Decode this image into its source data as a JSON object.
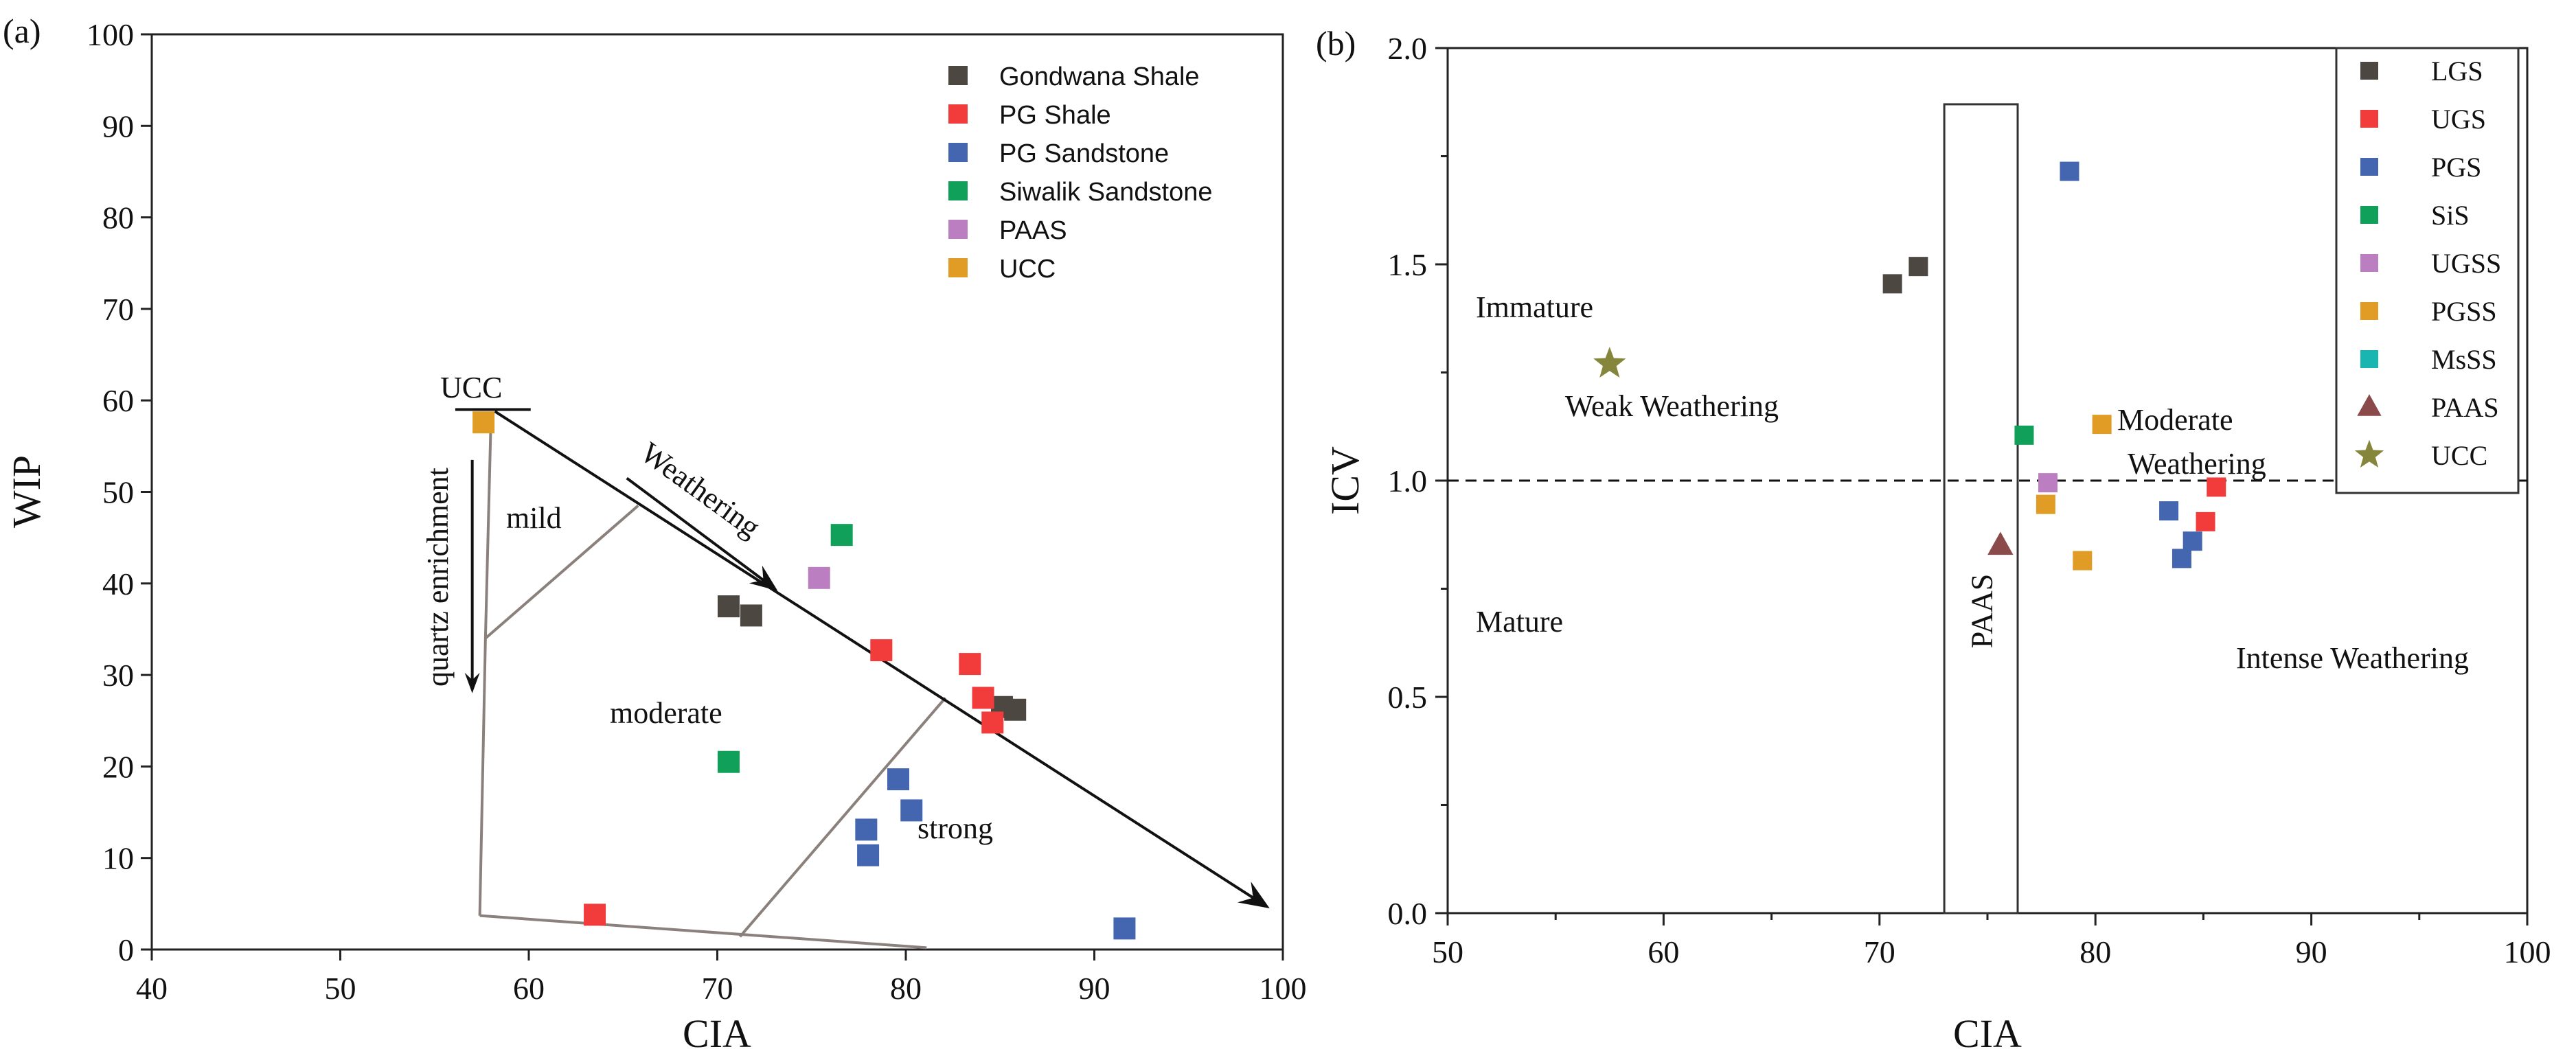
{
  "chart_data": [
    {
      "type": "scatter",
      "panel_label": "(a)",
      "xlabel": "CIA",
      "ylabel": "WIP",
      "xlim": [
        40,
        100
      ],
      "ylim": [
        0,
        100
      ],
      "xticks": [
        40,
        50,
        60,
        70,
        80,
        90,
        100
      ],
      "yticks": [
        0,
        10,
        20,
        30,
        40,
        50,
        60,
        70,
        80,
        90,
        100
      ],
      "series": [
        {
          "name": "Gondwana Shale",
          "color": "#4d4742",
          "marker": "square",
          "points": [
            [
              70.6,
              37.5
            ],
            [
              71.8,
              36.5
            ],
            [
              85.1,
              26.5
            ],
            [
              85.8,
              26.2
            ]
          ]
        },
        {
          "name": "PG Shale",
          "color": "#f23b3b",
          "marker": "square",
          "points": [
            [
              78.7,
              32.7
            ],
            [
              83.4,
              31.2
            ],
            [
              84.1,
              27.5
            ],
            [
              84.6,
              24.8
            ],
            [
              63.5,
              3.8
            ]
          ]
        },
        {
          "name": "PG Sandstone",
          "color": "#4466b0",
          "marker": "square",
          "points": [
            [
              79.6,
              18.6
            ],
            [
              80.3,
              15.2
            ],
            [
              77.9,
              13.1
            ],
            [
              78.0,
              10.3
            ],
            [
              91.6,
              2.3
            ]
          ]
        },
        {
          "name": "Siwalik Sandstone",
          "color": "#10a05a",
          "marker": "square",
          "points": [
            [
              76.6,
              45.3
            ],
            [
              70.6,
              20.5
            ]
          ]
        },
        {
          "name": "PAAS",
          "color": "#bb7ec0",
          "marker": "square",
          "points": [
            [
              75.4,
              40.6
            ]
          ]
        },
        {
          "name": "UCC",
          "color": "#e09c25",
          "marker": "square",
          "points": [
            [
              57.6,
              57.6
            ]
          ]
        }
      ],
      "annotations": {
        "ucc_label": "UCC",
        "weathering": "Weathering",
        "quartz": "quartz enrichment",
        "mild": "mild",
        "moderate": "moderate",
        "strong": "strong"
      },
      "lines": {
        "weathering_trend": [
          [
            58.2,
            58.8
          ],
          [
            99.3,
            4.5
          ]
        ],
        "ucc_tick": [
          [
            56.1,
            59.0
          ],
          [
            60.1,
            59.0
          ]
        ],
        "parallel_arrow": [
          [
            65.2,
            51.5
          ],
          [
            73.2,
            39.2
          ]
        ],
        "quartz_arrow": [
          [
            57.0,
            53.5
          ],
          [
            57.0,
            28.0
          ]
        ],
        "region_left": [
          [
            58.0,
            58.5
          ],
          [
            57.7,
            34.0
          ],
          [
            57.4,
            3.7
          ]
        ],
        "region_bottom": [
          [
            57.4,
            3.7
          ],
          [
            81.1,
            0.2
          ]
        ],
        "region_mild": [
          [
            57.7,
            34.0
          ],
          [
            65.8,
            48.5
          ]
        ],
        "region_strong": [
          [
            71.2,
            1.4
          ],
          [
            82.1,
            27.5
          ]
        ]
      }
    },
    {
      "type": "scatter",
      "panel_label": "(b)",
      "xlabel": "CIA",
      "ylabel": "ICV",
      "xlim": [
        50,
        100
      ],
      "ylim": [
        0.0,
        2.0
      ],
      "xticks": [
        50,
        60,
        70,
        80,
        90,
        100
      ],
      "yticks": [
        "0.0",
        "0.5",
        "1.0",
        "1.5",
        "2.0"
      ],
      "series": [
        {
          "name": "LGS",
          "color": "#4d4742",
          "marker": "square",
          "points": [
            [
              70.6,
              1.455
            ],
            [
              71.8,
              1.495
            ]
          ]
        },
        {
          "name": "UGS",
          "color": "#f23b3b",
          "marker": "square",
          "points": [
            [
              85.6,
              0.985
            ],
            [
              85.1,
              0.905
            ]
          ]
        },
        {
          "name": "PGS",
          "color": "#4466b0",
          "marker": "square",
          "points": [
            [
              78.8,
              1.715
            ],
            [
              83.4,
              0.93
            ],
            [
              84.5,
              0.86
            ],
            [
              84.0,
              0.82
            ]
          ]
        },
        {
          "name": "SiS",
          "color": "#10a05a",
          "marker": "square",
          "points": [
            [
              76.7,
              1.105
            ]
          ]
        },
        {
          "name": "UGSS",
          "color": "#bb7ec0",
          "marker": "square",
          "points": [
            [
              77.8,
              0.995
            ]
          ]
        },
        {
          "name": "PGSS",
          "color": "#e09c25",
          "marker": "square",
          "points": [
            [
              80.3,
              1.13
            ],
            [
              77.7,
              0.945
            ],
            [
              79.4,
              0.815
            ]
          ]
        },
        {
          "name": "MsSS",
          "color": "#19b5b0",
          "marker": "square",
          "points": []
        },
        {
          "name": "PAAS",
          "color": "#8b4a4a",
          "marker": "triangle",
          "points": [
            [
              75.6,
              0.85
            ]
          ]
        },
        {
          "name": "UCC",
          "color": "#85863c",
          "marker": "star",
          "points": [
            [
              57.5,
              1.27
            ]
          ]
        }
      ],
      "annotations": {
        "immature": "Immature",
        "weak": "Weak Weathering",
        "moderate_line1": "Moderate",
        "moderate_line2": "Weathering",
        "mature": "Mature",
        "intense": "Intense Weathering",
        "paas_box_label": "PAAS"
      },
      "reference": {
        "icv_threshold": 1.0,
        "paas_box": {
          "x": [
            73.0,
            76.4
          ],
          "y": [
            0.0,
            1.87
          ]
        }
      }
    }
  ]
}
